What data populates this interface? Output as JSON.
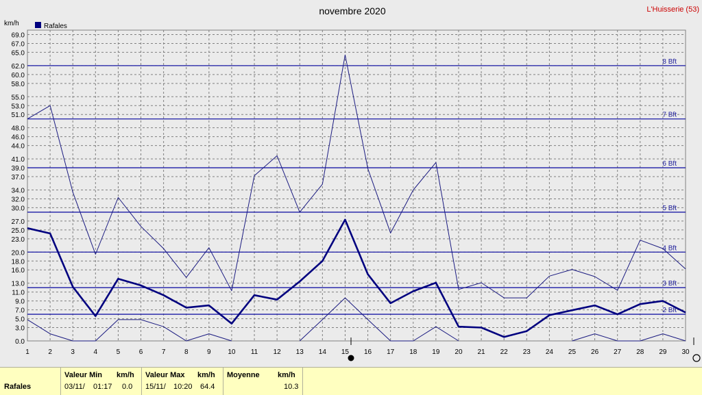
{
  "header": {
    "title": "novembre 2020",
    "location": "L'Huisserie (53)",
    "unit": "km/h",
    "legend_label": "Rafales"
  },
  "chart_data": {
    "type": "line",
    "title": "novembre 2020",
    "ylabel": "km/h",
    "x": [
      1,
      2,
      3,
      4,
      5,
      6,
      7,
      8,
      9,
      10,
      11,
      12,
      13,
      14,
      15,
      16,
      17,
      18,
      19,
      20,
      21,
      22,
      23,
      24,
      25,
      26,
      27,
      28,
      29,
      30
    ],
    "ylim": [
      0,
      70
    ],
    "y_ticks": [
      0.0,
      3.0,
      5.0,
      7.0,
      9.0,
      11.0,
      13.0,
      16.0,
      18.0,
      20.0,
      23.0,
      25.0,
      27.0,
      30.0,
      32.0,
      34.0,
      37.0,
      39.0,
      41.0,
      44.0,
      46.0,
      48.0,
      51.0,
      53.0,
      55.0,
      58.0,
      60.0,
      62.0,
      65.0,
      67.0,
      69.0
    ],
    "grid": true,
    "legend_position": "top-left",
    "beaufort_lines": [
      {
        "label": "2 Bft",
        "value": 6
      },
      {
        "label": "3 Bft",
        "value": 12
      },
      {
        "label": "4 Bft",
        "value": 20
      },
      {
        "label": "5 Bft",
        "value": 29
      },
      {
        "label": "6 Bft",
        "value": 39
      },
      {
        "label": "7 Bft",
        "value": 50
      },
      {
        "label": "8 Bft",
        "value": 62
      }
    ],
    "series": [
      {
        "name": "Rafales",
        "role": "mean",
        "color": "#00007f",
        "values": [
          25.4,
          24.2,
          12.2,
          5.6,
          14.0,
          12.5,
          10.3,
          7.5,
          8.0,
          3.9,
          10.3,
          9.3,
          13.4,
          18.0,
          27.3,
          15.0,
          8.5,
          11.2,
          13.1,
          3.2,
          3.0,
          0.9,
          2.2,
          5.8,
          6.9,
          8.0,
          6.0,
          8.3,
          9.0,
          6.4
        ]
      },
      {
        "role": "max",
        "color": "#1a1a80",
        "values": [
          50.0,
          53.0,
          33.5,
          19.5,
          32.3,
          25.8,
          20.8,
          14.3,
          21.0,
          11.3,
          37.2,
          41.7,
          29.0,
          35.3,
          64.4,
          38.8,
          24.3,
          34.0,
          40.2,
          11.6,
          13.1,
          9.7,
          9.7,
          14.6,
          16.1,
          14.5,
          11.4,
          22.7,
          20.8,
          16.2
        ]
      },
      {
        "role": "min",
        "color": "#1a1a80",
        "values": [
          4.8,
          1.6,
          0.0,
          0.0,
          4.8,
          4.8,
          3.2,
          0.0,
          1.6,
          0.0,
          null,
          null,
          0.0,
          4.8,
          9.7,
          4.8,
          0.0,
          0.0,
          3.2,
          0.0,
          null,
          null,
          null,
          null,
          0.0,
          1.6,
          0.0,
          0.0,
          1.6,
          0.0
        ]
      }
    ]
  },
  "stats": {
    "row_label": "Rafales",
    "min_header": "Valeur Min",
    "max_header": "Valeur Max",
    "avg_header": "Moyenne",
    "unit_header": "km/h",
    "min_date": "03/11/",
    "min_time": "01:17",
    "min_value": "0.0",
    "max_date": "15/11/",
    "max_time": "10:20",
    "max_value": "64.4",
    "avg_value": "10.3"
  }
}
